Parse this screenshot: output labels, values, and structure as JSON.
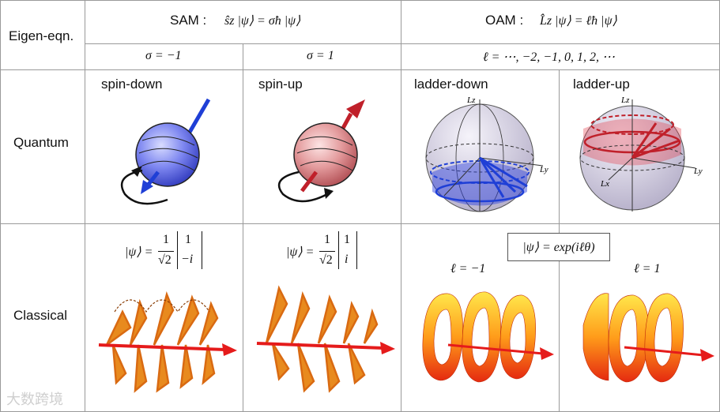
{
  "rows": {
    "eigen": "Eigen-eqn.",
    "quantum": "Quantum",
    "classical": "Classical"
  },
  "header": {
    "sam_label": "SAM :",
    "sam_eq": "ŝz |ψ⟩ = σħ |ψ⟩",
    "oam_label": "OAM :",
    "oam_eq": "L̂z |ψ⟩ = ℓħ |ψ⟩"
  },
  "subheader": {
    "sigma_minus": "σ = −1",
    "sigma_plus": "σ = 1",
    "ell_values": "ℓ = ⋯, −2, −1, 0, 1, 2, ⋯"
  },
  "quantum": {
    "spin_down": "spin-down",
    "spin_up": "spin-up",
    "ladder_down": "ladder-down",
    "ladder_up": "ladder-up",
    "axis_lz": "Lz",
    "axis_ly": "Ly",
    "axis_lx": "Lx"
  },
  "classical": {
    "psi": "|ψ⟩ =",
    "one": "1",
    "sqrt2": "√2",
    "vec_down_top": "1",
    "vec_down_bottom": "−i",
    "vec_up_top": "1",
    "vec_up_bottom": "i",
    "oam_eq": "|ψ⟩ = exp(iℓθ)",
    "ell_minus": "ℓ = −1",
    "ell_plus": "ℓ = 1"
  },
  "watermark": "大数跨境",
  "colors": {
    "grid": "#9a9a9a",
    "blue": "#1f3fd6",
    "red": "#c0202a",
    "orange": "#e07a10",
    "yellow": "#ffd400"
  }
}
